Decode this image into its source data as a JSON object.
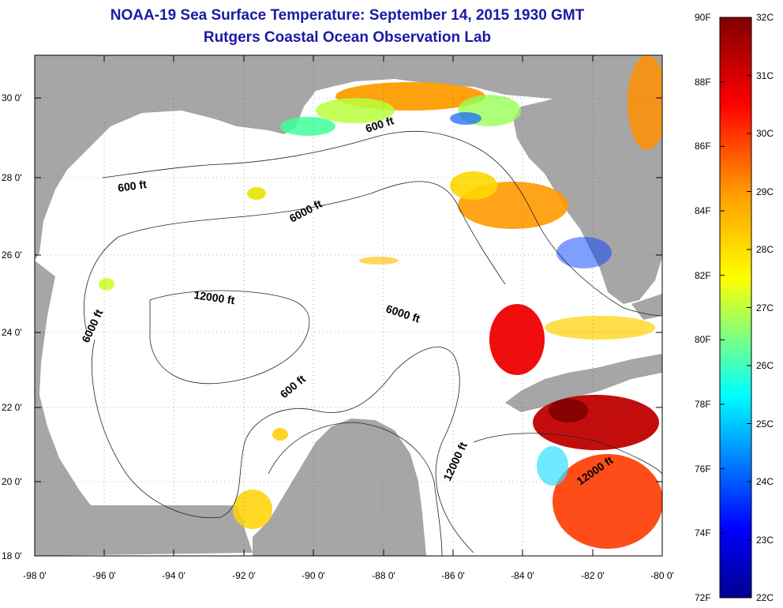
{
  "title": "NOAA-19 Sea Surface Temperature:  September 14, 2015 1930 GMT",
  "subtitle": "Rutgers Coastal Ocean Observation Lab",
  "x_ticks": [
    "-98 0'",
    "-96 0'",
    "-94 0'",
    "-92 0'",
    "-90 0'",
    "-88 0'",
    "-86 0'",
    "-84 0'",
    "-82 0'",
    "-80 0'"
  ],
  "y_ticks": [
    "18 0'",
    "20 0'",
    "22 0'",
    "24 0'",
    "26 0'",
    "28 0'",
    "30 0'"
  ],
  "colorbar": {
    "f_labels": [
      "90F",
      "88F",
      "86F",
      "84F",
      "82F",
      "80F",
      "78F",
      "76F",
      "74F",
      "72F"
    ],
    "c_labels": [
      "32C",
      "31C",
      "30C",
      "29C",
      "28C",
      "27C",
      "26C",
      "25C",
      "24C",
      "23C",
      "22C"
    ]
  },
  "contour_labels": [
    "600 ft",
    "600 ft",
    "600 ft",
    "6000 ft",
    "6000 ft",
    "6000 ft",
    "12000 ft",
    "12000 ft",
    "12000 ft"
  ],
  "colors": {
    "land": "#a6a6a6",
    "ocean": "#ffffff",
    "title": "#1a1aa6"
  },
  "chart_data": {
    "type": "heatmap",
    "x_range": [
      -98,
      -80
    ],
    "y_range": [
      18,
      31
    ],
    "colorbar_range_c": [
      22,
      32
    ],
    "colorbar_range_f": [
      72,
      90
    ],
    "grid": true
  }
}
